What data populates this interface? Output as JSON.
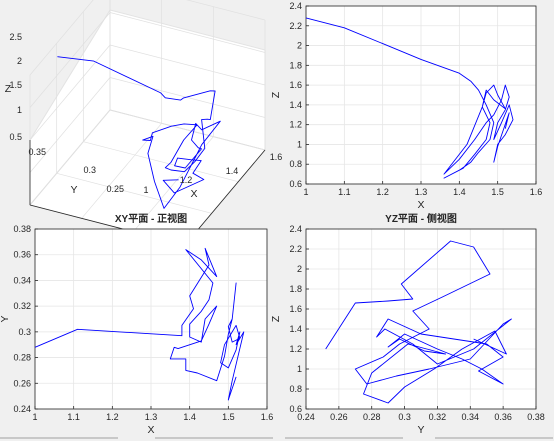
{
  "figure": {
    "background": "#f0f0f0",
    "line_color": "#0000ff"
  },
  "chart_data": [
    {
      "id": "p3d",
      "type": "line",
      "projection": "3d",
      "xlabel": "X",
      "ylabel": "Y",
      "zlabel": "Z",
      "title": "",
      "xlim": [
        1,
        1.6
      ],
      "ylim": [
        0.24,
        0.38
      ],
      "zlim": [
        0.5,
        2.5
      ],
      "xticks": [
        "1",
        "1.2",
        "1.4",
        "1.6"
      ],
      "yticks": [
        "0.25",
        "0.3",
        "0.35"
      ],
      "zticks": [
        "0.5",
        "1",
        "1.5",
        "2",
        "2.5"
      ],
      "grid": true,
      "series": [
        {
          "x": [],
          "y": [],
          "z": []
        }
      ]
    },
    {
      "id": "pxz",
      "type": "line",
      "title": "",
      "xlabel": "X",
      "ylabel": "Z",
      "xlim": [
        1,
        1.6
      ],
      "ylim": [
        0.6,
        2.4
      ],
      "xticks": [
        "1",
        "1.1",
        "1.2",
        "1.3",
        "1.4",
        "1.5",
        "1.6"
      ],
      "yticks": [
        "0.6",
        "0.8",
        "1",
        "1.2",
        "1.4",
        "1.6",
        "1.8",
        "2",
        "2.2",
        "2.4"
      ],
      "grid": true,
      "series": [
        {
          "x": [
            1.0,
            1.1,
            1.2,
            1.3,
            1.4,
            1.43,
            1.45,
            1.47,
            1.49,
            1.48,
            1.45,
            1.43,
            1.4,
            1.36,
            1.41,
            1.44,
            1.47,
            1.48,
            1.46,
            1.47,
            1.49,
            1.5,
            1.52,
            1.49,
            1.47,
            1.46,
            1.42,
            1.36,
            1.4,
            1.44,
            1.47,
            1.49,
            1.51,
            1.52,
            1.53,
            1.52,
            1.5,
            1.49,
            1.51,
            1.53,
            1.54,
            1.52,
            1.5,
            1.49,
            1.5,
            1.53,
            1.52
          ],
          "y": [
            2.28,
            2.18,
            2.02,
            1.86,
            1.72,
            1.64,
            1.55,
            1.4,
            1.22,
            1.05,
            0.92,
            0.82,
            0.74,
            0.66,
            0.76,
            0.9,
            1.05,
            1.22,
            1.38,
            1.52,
            1.6,
            1.5,
            1.36,
            1.45,
            1.55,
            1.38,
            1.0,
            0.7,
            0.85,
            1.05,
            1.22,
            1.3,
            1.45,
            1.6,
            1.48,
            1.35,
            1.22,
            1.05,
            1.22,
            1.4,
            1.25,
            1.1,
            1.0,
            0.82,
            0.98,
            1.32,
            1.16
          ]
        }
      ]
    },
    {
      "id": "pxy",
      "type": "line",
      "title": "XY平面 - 正视图",
      "xlabel": "X",
      "ylabel": "Y",
      "xlim": [
        1,
        1.6
      ],
      "ylim": [
        0.24,
        0.38
      ],
      "xticks": [
        "1",
        "1.1",
        "1.2",
        "1.3",
        "1.4",
        "1.5",
        "1.6"
      ],
      "yticks": [
        "0.24",
        "0.26",
        "0.28",
        "0.3",
        "0.32",
        "0.34",
        "0.36",
        "0.38"
      ],
      "grid": true,
      "series": [
        {
          "x": [
            1.0,
            1.11,
            1.38,
            1.38,
            1.41,
            1.4,
            1.45,
            1.44,
            1.47,
            1.43,
            1.39,
            1.46,
            1.45,
            1.43,
            1.4,
            1.4,
            1.43,
            1.44,
            1.47,
            1.45,
            1.43,
            1.37,
            1.36,
            1.35,
            1.39,
            1.39,
            1.42,
            1.47,
            1.49,
            1.5,
            1.51,
            1.52,
            1.51,
            1.5,
            1.51,
            1.53,
            1.52,
            1.49,
            1.48,
            1.5,
            1.52,
            1.53,
            1.52,
            1.54,
            1.51,
            1.5,
            1.52
          ],
          "y": [
            0.288,
            0.302,
            0.297,
            0.305,
            0.318,
            0.328,
            0.352,
            0.365,
            0.343,
            0.356,
            0.364,
            0.338,
            0.325,
            0.316,
            0.306,
            0.296,
            0.292,
            0.31,
            0.32,
            0.306,
            0.293,
            0.287,
            0.288,
            0.279,
            0.279,
            0.27,
            0.268,
            0.262,
            0.281,
            0.298,
            0.31,
            0.338,
            0.31,
            0.304,
            0.292,
            0.295,
            0.305,
            0.29,
            0.276,
            0.272,
            0.286,
            0.3,
            0.29,
            0.3,
            0.262,
            0.247,
            0.265
          ]
        }
      ]
    },
    {
      "id": "pyz",
      "type": "line",
      "title": "YZ平面 - 侧视图",
      "xlabel": "Y",
      "ylabel": "Z",
      "xlim": [
        0.24,
        0.38
      ],
      "ylim": [
        0.6,
        2.4
      ],
      "xticks": [
        "0.24",
        "0.26",
        "0.28",
        "0.3",
        "0.32",
        "0.34",
        "0.36",
        "0.38"
      ],
      "yticks": [
        "0.6",
        "0.8",
        "1",
        "1.2",
        "1.4",
        "1.6",
        "1.8",
        "2",
        "2.2",
        "2.4"
      ],
      "grid": true,
      "series": [
        {
          "x": [
            0.252,
            0.27,
            0.29,
            0.305,
            0.298,
            0.328,
            0.342,
            0.352,
            0.323,
            0.305,
            0.315,
            0.297,
            0.287,
            0.27,
            0.277,
            0.295,
            0.315,
            0.34,
            0.36,
            0.365,
            0.342,
            0.32,
            0.305,
            0.288,
            0.283,
            0.29,
            0.31,
            0.35,
            0.36,
            0.345,
            0.36,
            0.347,
            0.335,
            0.32,
            0.3,
            0.29,
            0.297,
            0.312,
            0.325,
            0.302,
            0.28,
            0.275,
            0.29,
            0.3,
            0.318,
            0.335,
            0.355,
            0.362,
            0.342
          ],
          "y": [
            1.2,
            1.66,
            1.68,
            1.7,
            1.85,
            2.28,
            2.22,
            1.95,
            1.72,
            1.58,
            1.4,
            1.25,
            1.12,
            1.0,
            0.85,
            0.93,
            1.0,
            1.1,
            1.45,
            1.5,
            1.2,
            1.05,
            1.25,
            1.4,
            1.32,
            1.5,
            1.35,
            1.25,
            1.12,
            0.98,
            0.85,
            1.0,
            1.1,
            1.2,
            1.35,
            1.22,
            1.3,
            1.18,
            1.15,
            1.25,
            0.96,
            0.75,
            0.66,
            0.82,
            1.0,
            1.2,
            1.38,
            1.15,
            1.3
          ]
        }
      ]
    }
  ]
}
